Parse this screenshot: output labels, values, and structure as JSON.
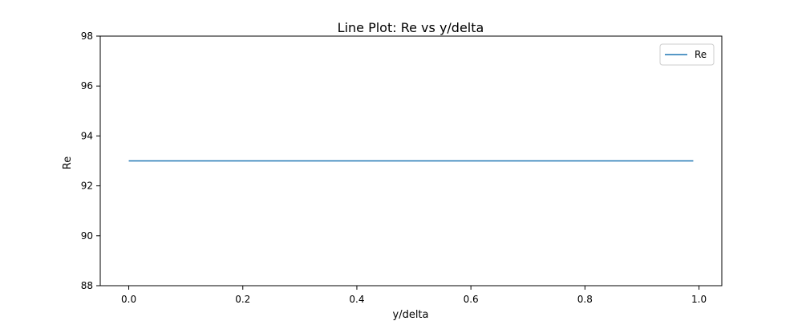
{
  "chart_data": {
    "type": "line",
    "title": "Line Plot: Re vs y/delta",
    "xlabel": "y/delta",
    "ylabel": "Re",
    "xlim": [
      -0.05,
      1.04
    ],
    "ylim": [
      88,
      98
    ],
    "x_ticks": [
      0.0,
      0.2,
      0.4,
      0.6,
      0.8,
      1.0
    ],
    "x_tick_labels": [
      "0.0",
      "0.2",
      "0.4",
      "0.6",
      "0.8",
      "1.0"
    ],
    "y_ticks": [
      88,
      90,
      92,
      94,
      96,
      98
    ],
    "y_tick_labels": [
      "88",
      "90",
      "92",
      "94",
      "96",
      "98"
    ],
    "grid": false,
    "legend_position": "top-right",
    "series": [
      {
        "name": "Re",
        "color": "#1f77b4",
        "x": [
          0.0,
          0.99
        ],
        "y": [
          93,
          93
        ]
      }
    ]
  }
}
